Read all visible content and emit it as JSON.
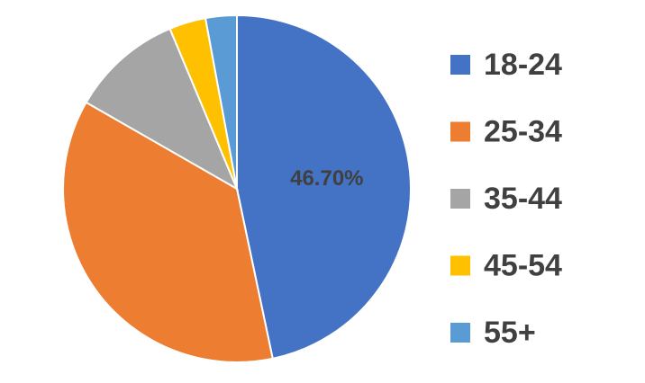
{
  "chart_data": {
    "type": "pie",
    "categories": [
      "18-24",
      "25-34",
      "35-44",
      "45-54",
      "55+"
    ],
    "values": [
      46.7,
      36.6,
      10.4,
      3.4,
      2.9
    ],
    "value_labels": [
      "46.70%",
      null,
      null,
      null,
      null
    ],
    "colors": [
      "#4472c4",
      "#ed7d31",
      "#a5a5a5",
      "#ffc000",
      "#5b9bd5"
    ],
    "legend": "right"
  }
}
